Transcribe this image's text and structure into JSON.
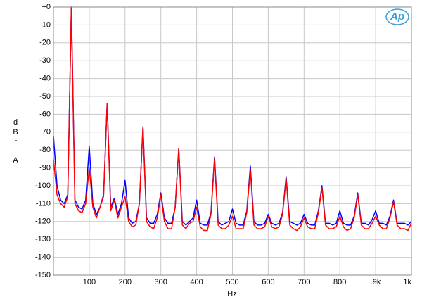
{
  "chart_data": {
    "type": "line",
    "logo": "Ap",
    "ylabel": "dBr",
    "ylabel_unit": "A",
    "xlabel": "Hz",
    "xlim": [
      0,
      1000
    ],
    "ylim": [
      -150,
      0
    ],
    "xticks": [
      100,
      200,
      300,
      400,
      500,
      600,
      700,
      800,
      {
        "value": 900,
        "label": ".9k"
      },
      {
        "value": 1000,
        "label": "1k"
      }
    ],
    "yticks": [
      {
        "value": 0,
        "label": "+0"
      },
      -10,
      -20,
      -30,
      -40,
      -50,
      -60,
      -70,
      -80,
      -90,
      -100,
      -110,
      -120,
      -130,
      -140,
      -150
    ],
    "grid": true,
    "x": [
      0,
      10,
      20,
      30,
      40,
      50,
      60,
      70,
      80,
      90,
      100,
      110,
      120,
      130,
      140,
      150,
      160,
      170,
      180,
      190,
      200,
      210,
      220,
      230,
      240,
      250,
      260,
      270,
      280,
      290,
      300,
      310,
      320,
      330,
      340,
      350,
      360,
      370,
      380,
      390,
      400,
      410,
      420,
      430,
      440,
      450,
      460,
      470,
      480,
      490,
      500,
      510,
      520,
      530,
      540,
      550,
      560,
      570,
      580,
      590,
      600,
      610,
      620,
      630,
      640,
      650,
      660,
      670,
      680,
      690,
      700,
      710,
      720,
      730,
      740,
      750,
      760,
      770,
      780,
      790,
      800,
      810,
      820,
      830,
      840,
      850,
      860,
      870,
      880,
      890,
      900,
      910,
      920,
      930,
      940,
      950,
      960,
      970,
      980,
      990,
      1000
    ],
    "series": [
      {
        "color": "#0000ff",
        "values": [
          -72,
          -100,
          -108,
          -110,
          -105,
          0,
          -108,
          -112,
          -113,
          -108,
          -78,
          -110,
          -116,
          -112,
          -105,
          -54,
          -112,
          -107,
          -116,
          -110,
          -97,
          -118,
          -121,
          -120,
          -110,
          -67,
          -118,
          -121,
          -121,
          -116,
          -104,
          -118,
          -121,
          -121,
          -112,
          -79,
          -120,
          -122,
          -120,
          -118,
          -108,
          -121,
          -122,
          -122,
          -115,
          -84,
          -120,
          -122,
          -121,
          -120,
          -113,
          -121,
          -122,
          -122,
          -114,
          -89,
          -120,
          -122,
          -122,
          -121,
          -116,
          -121,
          -122,
          -121,
          -115,
          -95,
          -120,
          -121,
          -122,
          -121,
          -116,
          -121,
          -122,
          -122,
          -114,
          -100,
          -121,
          -121,
          -122,
          -121,
          -114,
          -121,
          -122,
          -122,
          -117,
          -104,
          -121,
          -121,
          -122,
          -119,
          -114,
          -121,
          -121,
          -122,
          -117,
          -108,
          -121,
          -121,
          -121,
          -122,
          -120
        ]
      },
      {
        "color": "#ff0000",
        "values": [
          -85,
          -105,
          -110,
          -112,
          -106,
          0,
          -110,
          -114,
          -115,
          -110,
          -90,
          -112,
          -118,
          -112,
          -106,
          -54,
          -114,
          -108,
          -118,
          -112,
          -106,
          -120,
          -123,
          -122,
          -110,
          -67,
          -120,
          -123,
          -124,
          -118,
          -105,
          -120,
          -124,
          -124,
          -112,
          -79,
          -122,
          -124,
          -121,
          -120,
          -112,
          -123,
          -125,
          -125,
          -116,
          -85,
          -122,
          -124,
          -124,
          -122,
          -117,
          -124,
          -124,
          -124,
          -115,
          -91,
          -122,
          -124,
          -124,
          -123,
          -117,
          -123,
          -124,
          -123,
          -116,
          -96,
          -122,
          -124,
          -125,
          -123,
          -118,
          -123,
          -124,
          -124,
          -115,
          -101,
          -122,
          -124,
          -124,
          -123,
          -117,
          -123,
          -125,
          -124,
          -118,
          -105,
          -122,
          -124,
          -124,
          -121,
          -117,
          -122,
          -124,
          -124,
          -118,
          -109,
          -122,
          -124,
          -124,
          -125,
          -121
        ]
      }
    ]
  }
}
